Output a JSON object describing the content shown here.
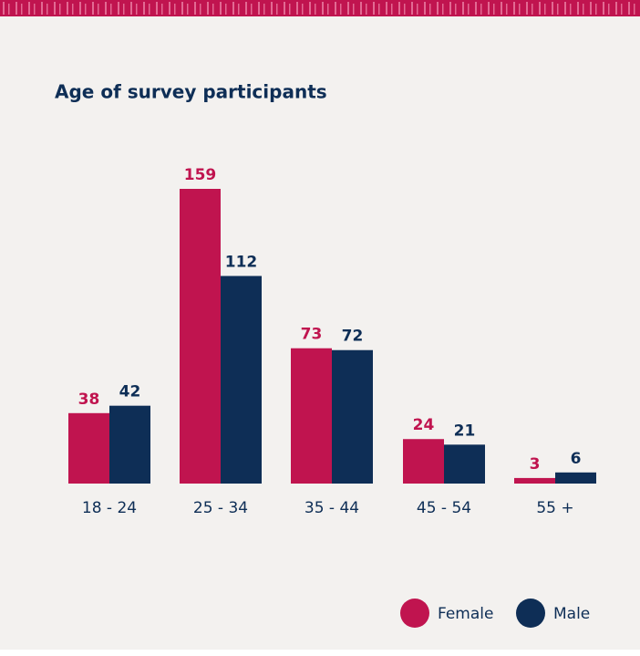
{
  "chart_data": {
    "type": "bar",
    "title": "Age of survey participants",
    "categories": [
      "18 - 24",
      "25 - 34",
      "35 - 44",
      "45 - 54",
      "55 +"
    ],
    "series": [
      {
        "name": "Female",
        "color": "#c0144f",
        "values": [
          38,
          159,
          73,
          24,
          3
        ]
      },
      {
        "name": "Male",
        "color": "#0e2e56",
        "values": [
          42,
          112,
          72,
          21,
          6
        ]
      }
    ]
  }
}
